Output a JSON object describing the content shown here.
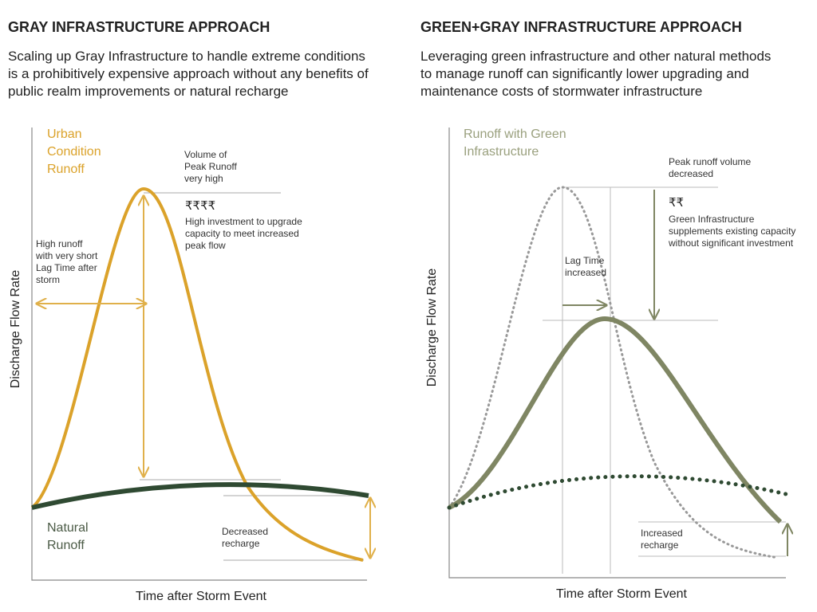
{
  "left": {
    "title": "GRAY INFRASTRUCTURE APPROACH",
    "description": [
      "Scaling up Gray Infrastructure to handle extreme conditions",
      "is a prohibitively expensive approach without any benefits of",
      "public realm improvements or natural recharge"
    ],
    "curve_label": [
      "Urban",
      "Condition",
      "Runoff"
    ],
    "peak_label": [
      "Volume of",
      "Peak Runoff",
      "very high"
    ],
    "cost": "₹₹₹₹",
    "cost_note": [
      "High investment to upgrade",
      "capacity to meet increased",
      "peak flow"
    ],
    "lag_note": [
      "High runoff",
      "with very short",
      "Lag Time after",
      "storm"
    ],
    "natural_label": [
      "Natural",
      "Runoff"
    ],
    "recharge_note": [
      "Decreased",
      "recharge"
    ],
    "y_axis": "Discharge Flow Rate",
    "x_axis": "Time after Storm Event"
  },
  "right": {
    "title": "GREEN+GRAY INFRASTRUCTURE APPROACH",
    "description": [
      "Leveraging green infrastructure and other natural methods",
      "to manage runoff can significantly lower upgrading and",
      "maintenance costs of stormwater infrastructure"
    ],
    "curve_label": [
      "Runoff with Green",
      "Infrastructure"
    ],
    "peak_label": [
      "Peak runoff volume",
      "decreased"
    ],
    "cost": "₹₹",
    "cost_note": [
      "Green Infrastructure",
      "supplements existing capacity",
      "without significant investment"
    ],
    "lag_note": [
      "Lag Time",
      " increased"
    ],
    "recharge_note": [
      "Increased",
      "recharge"
    ],
    "y_axis": "Discharge Flow Rate",
    "x_axis": "Time after Storm Event"
  }
}
